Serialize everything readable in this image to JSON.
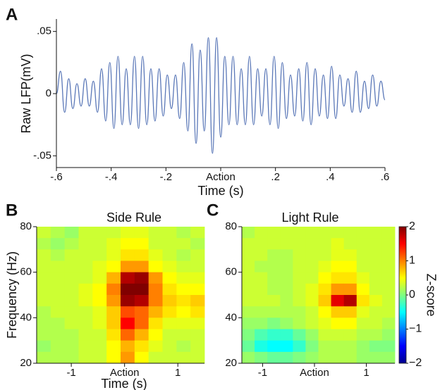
{
  "chart_data": [
    {
      "type": "line",
      "panel": "A",
      "ylabel": "Raw LFP(mV)",
      "xlabel": "Time (s)",
      "xlim": [
        -0.6,
        0.6
      ],
      "ylim": [
        -0.06,
        0.06
      ],
      "xticks": [
        {
          "value": -0.6,
          "label": "-.6"
        },
        {
          "value": -0.4,
          "label": "-.4"
        },
        {
          "value": -0.2,
          "label": "-.2"
        },
        {
          "value": 0,
          "label": "Action"
        },
        {
          "value": 0.2,
          "label": ".2"
        },
        {
          "value": 0.4,
          "label": ".4"
        },
        {
          "value": 0.6,
          "label": ".6"
        }
      ],
      "yticks": [
        {
          "value": -0.05,
          "label": "-.05"
        },
        0,
        {
          "value": 0.05,
          "label": ".05"
        }
      ],
      "color": "#5b78b8",
      "x": [
        -0.6,
        -0.585,
        -0.57,
        -0.555,
        -0.54,
        -0.525,
        -0.51,
        -0.495,
        -0.48,
        -0.465,
        -0.45,
        -0.435,
        -0.42,
        -0.405,
        -0.39,
        -0.375,
        -0.36,
        -0.345,
        -0.33,
        -0.315,
        -0.3,
        -0.285,
        -0.27,
        -0.255,
        -0.24,
        -0.225,
        -0.21,
        -0.195,
        -0.18,
        -0.165,
        -0.15,
        -0.135,
        -0.12,
        -0.105,
        -0.09,
        -0.075,
        -0.06,
        -0.045,
        -0.03,
        -0.015,
        0,
        0.015,
        0.03,
        0.045,
        0.06,
        0.075,
        0.09,
        0.105,
        0.12,
        0.135,
        0.15,
        0.165,
        0.18,
        0.195,
        0.21,
        0.225,
        0.24,
        0.255,
        0.27,
        0.285,
        0.3,
        0.315,
        0.33,
        0.345,
        0.36,
        0.375,
        0.39,
        0.405,
        0.42,
        0.435,
        0.45,
        0.465,
        0.48,
        0.495,
        0.51,
        0.525,
        0.54,
        0.555,
        0.57,
        0.585,
        0.6
      ],
      "values": [
        0,
        0.018,
        -0.015,
        0.012,
        -0.012,
        0.008,
        -0.01,
        0.012,
        -0.01,
        0.01,
        -0.015,
        0.02,
        -0.022,
        0.025,
        -0.028,
        0.03,
        -0.025,
        0.02,
        -0.025,
        0.03,
        -0.028,
        0.03,
        -0.025,
        0.02,
        -0.022,
        0.02,
        -0.018,
        0.015,
        -0.012,
        0.015,
        -0.02,
        0.025,
        -0.03,
        0.04,
        -0.04,
        0.035,
        -0.03,
        0.045,
        -0.048,
        0.045,
        -0.035,
        0.03,
        -0.025,
        0.03,
        -0.025,
        0.02,
        -0.025,
        0.03,
        -0.025,
        0.02,
        -0.018,
        0.02,
        -0.025,
        0.03,
        -0.028,
        0.025,
        -0.02,
        0.015,
        -0.018,
        0.02,
        -0.022,
        0.025,
        -0.025,
        0.02,
        -0.018,
        0.015,
        -0.02,
        0.022,
        -0.02,
        0.015,
        -0.01,
        0.012,
        -0.015,
        0.018,
        -0.015,
        0.01,
        -0.012,
        0.015,
        -0.01,
        0.01,
        -0.005
      ]
    },
    {
      "type": "heatmap",
      "panel": "B",
      "title": "Side Rule",
      "ylabel": "Frequency (Hz)",
      "xlabel": "Time (s)",
      "xlim": [
        -1.65,
        1.5
      ],
      "ylim": [
        20,
        80
      ],
      "zlim": [
        -2,
        2
      ],
      "colormap": "jet",
      "xticks": [
        {
          "value": -1,
          "label": "-1"
        },
        {
          "value": 0,
          "label": "Action"
        },
        1
      ],
      "yticks": [
        20,
        40,
        60,
        80
      ],
      "z": [
        [
          0.3,
          0.2,
          0.1,
          0.3,
          0.3,
          0.3,
          0.4,
          0.4,
          0.3,
          0.3,
          0.2,
          0.3
        ],
        [
          0.2,
          0.1,
          0.2,
          0.3,
          0.3,
          0.4,
          0.5,
          0.5,
          0.3,
          0.3,
          0.3,
          0.2
        ],
        [
          0.3,
          0.2,
          0.3,
          0.3,
          0.3,
          0.4,
          0.6,
          0.6,
          0.4,
          0.3,
          0.2,
          0.3
        ],
        [
          0.3,
          0.3,
          0.3,
          0.3,
          0.4,
          0.5,
          0.9,
          0.9,
          0.5,
          0.4,
          0.3,
          0.3
        ],
        [
          0.3,
          0.3,
          0.3,
          0.3,
          0.4,
          0.8,
          1.8,
          1.9,
          0.9,
          0.5,
          0.4,
          0.4
        ],
        [
          0.3,
          0.3,
          0.3,
          0.4,
          0.5,
          1.0,
          2.0,
          2.0,
          1.0,
          0.6,
          0.5,
          0.5
        ],
        [
          0.3,
          0.3,
          0.3,
          0.4,
          0.5,
          0.9,
          1.9,
          1.8,
          1.0,
          0.7,
          0.6,
          0.7
        ],
        [
          0.2,
          0.3,
          0.3,
          0.3,
          0.4,
          0.7,
          1.2,
          1.1,
          0.8,
          0.6,
          0.5,
          0.6
        ],
        [
          0.2,
          0.2,
          0.3,
          0.3,
          0.4,
          0.7,
          1.5,
          1.1,
          0.6,
          0.4,
          0.4,
          0.4
        ],
        [
          0.2,
          0.2,
          0.2,
          0.3,
          0.3,
          0.6,
          1.1,
          0.8,
          0.5,
          0.3,
          0.3,
          0.3
        ],
        [
          0.1,
          0.2,
          0.2,
          0.3,
          0.3,
          0.5,
          0.8,
          0.6,
          0.4,
          0.3,
          0.2,
          0.3
        ],
        [
          0.2,
          0.2,
          0.2,
          0.3,
          0.3,
          0.5,
          0.9,
          0.5,
          0.3,
          0.3,
          0.3,
          0.3
        ]
      ]
    },
    {
      "type": "heatmap",
      "panel": "C",
      "title": "Light Rule",
      "xlim": [
        -1.4,
        1.55
      ],
      "ylim": [
        20,
        80
      ],
      "zlim": [
        -2,
        2
      ],
      "colormap": "jet",
      "xticks": [
        {
          "value": -1,
          "label": "-1"
        },
        {
          "value": 0,
          "label": "Action"
        },
        1
      ],
      "yticks": [
        20,
        40,
        60,
        80
      ],
      "z": [
        [
          0.2,
          0.3,
          0.3,
          0.3,
          0.3,
          0.3,
          0.3,
          0.3,
          0.3,
          0.3,
          0.3,
          0.3
        ],
        [
          0.3,
          0.3,
          0.3,
          0.3,
          0.3,
          0.3,
          0.3,
          0.4,
          0.3,
          0.3,
          0.3,
          0.3
        ],
        [
          0.3,
          0.3,
          0.2,
          0.2,
          0.3,
          0.3,
          0.3,
          0.4,
          0.4,
          0.3,
          0.3,
          0.3
        ],
        [
          0.3,
          0.2,
          0.2,
          0.2,
          0.3,
          0.3,
          0.4,
          0.5,
          0.5,
          0.3,
          0.3,
          0.3
        ],
        [
          0.3,
          0.3,
          0.2,
          0.2,
          0.3,
          0.3,
          0.5,
          0.6,
          0.6,
          0.4,
          0.3,
          0.3
        ],
        [
          0.3,
          0.3,
          0.2,
          0.2,
          0.3,
          0.4,
          0.6,
          0.9,
          0.9,
          0.5,
          0.3,
          0.3
        ],
        [
          0.3,
          0.3,
          0.3,
          0.2,
          0.3,
          0.4,
          0.7,
          1.6,
          1.8,
          0.6,
          0.4,
          0.3
        ],
        [
          0.2,
          0.2,
          0.2,
          0.2,
          0.2,
          0.3,
          0.5,
          0.7,
          0.7,
          0.4,
          0.3,
          0.3
        ],
        [
          0.1,
          0.1,
          0.0,
          0.1,
          0.2,
          0.3,
          0.4,
          0.5,
          0.5,
          0.3,
          0.3,
          0.2
        ],
        [
          0.0,
          -0.2,
          -0.3,
          -0.3,
          -0.1,
          0.1,
          0.3,
          0.3,
          0.3,
          0.2,
          0.2,
          0.1
        ],
        [
          -0.1,
          -0.4,
          -0.5,
          -0.5,
          -0.3,
          0.0,
          0.2,
          0.2,
          0.2,
          0.1,
          0.0,
          0.0
        ],
        [
          0.1,
          0.0,
          -0.1,
          -0.1,
          0.0,
          0.1,
          0.2,
          0.2,
          0.2,
          0.1,
          0.1,
          0.1
        ]
      ],
      "colorbar": {
        "label": "Z-score",
        "ticks": [
          {
            "value": -2,
            "label": "−2"
          },
          {
            "value": -1,
            "label": "−1"
          },
          0,
          1,
          2
        ]
      }
    }
  ]
}
